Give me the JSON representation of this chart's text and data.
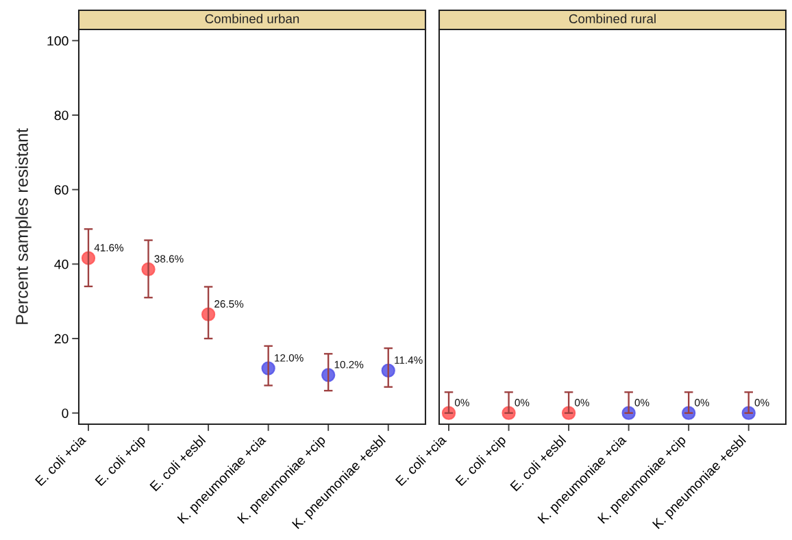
{
  "chart_data": [
    {
      "type": "scatter",
      "title": "Combined urban",
      "ylabel": "Percent samples resistant",
      "categories": [
        "E. coli +cia",
        "E. coli +cip",
        "E. coli +esbl",
        "K. pneumoniae +cia",
        "K. pneumoniae +cip",
        "K. pneumoniae +esbl"
      ],
      "values": [
        41.6,
        38.6,
        26.5,
        12.0,
        10.2,
        11.4
      ],
      "colors": [
        "#ff5555",
        "#ff5555",
        "#ff5555",
        "#5555e8",
        "#5555e8",
        "#5555e8"
      ],
      "errors": [
        [
          34.0,
          49.4
        ],
        [
          31.0,
          46.4
        ],
        [
          20.0,
          33.9
        ],
        [
          7.4,
          18.0
        ],
        [
          6.0,
          15.9
        ],
        [
          7.0,
          17.4
        ]
      ],
      "value_labels": [
        "41.6%",
        "38.6%",
        "26.5%",
        "12.0%",
        "10.2%",
        "11.4%"
      ],
      "ylim": [
        -3,
        103
      ],
      "yticks": [
        0,
        20,
        40,
        60,
        80,
        100
      ],
      "marker": "circle"
    },
    {
      "type": "scatter",
      "title": "Combined rural",
      "categories": [
        "E. coli +cia",
        "E. coli +cip",
        "E. coli +esbl",
        "K. pneumoniae +cia",
        "K. pneumoniae +cip",
        "K. pneumoniae +esbl"
      ],
      "values": [
        0,
        0,
        0,
        0,
        0,
        0
      ],
      "colors": [
        "#ff5555",
        "#ff5555",
        "#ff5555",
        "#5555e8",
        "#5555e8",
        "#5555e8"
      ],
      "errors": [
        [
          0,
          5.6
        ],
        [
          0,
          5.6
        ],
        [
          0,
          5.6
        ],
        [
          0,
          5.6
        ],
        [
          0,
          5.6
        ],
        [
          0,
          5.6
        ]
      ],
      "value_labels": [
        "0%",
        "0%",
        "0%",
        "0%",
        "0%",
        "0%"
      ],
      "ylim": [
        -3,
        103
      ],
      "yticks": [
        0,
        20,
        40,
        60,
        80,
        100
      ],
      "marker": "circle",
      "tick_labels": "x"
    }
  ]
}
